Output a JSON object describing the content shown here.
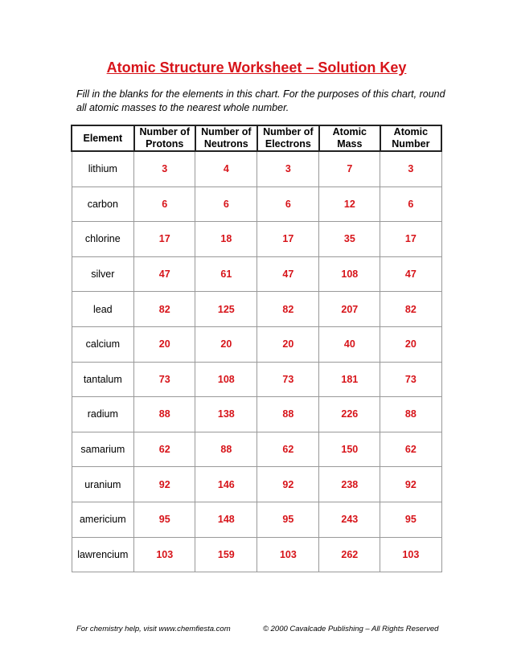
{
  "title": "Atomic Structure Worksheet – Solution Key",
  "intro": "Fill in the blanks for the elements in this chart.  For the purposes of this chart, round all atomic masses to the nearest whole number.",
  "colors": {
    "accent": "#d7141a"
  },
  "table": {
    "headers": [
      "Element",
      "Number of Protons",
      "Number of Neutrons",
      "Number of Electrons",
      "Atomic Mass",
      "Atomic Number"
    ],
    "rows": [
      [
        "lithium",
        "3",
        "4",
        "3",
        "7",
        "3"
      ],
      [
        "carbon",
        "6",
        "6",
        "6",
        "12",
        "6"
      ],
      [
        "chlorine",
        "17",
        "18",
        "17",
        "35",
        "17"
      ],
      [
        "silver",
        "47",
        "61",
        "47",
        "108",
        "47"
      ],
      [
        "lead",
        "82",
        "125",
        "82",
        "207",
        "82"
      ],
      [
        "calcium",
        "20",
        "20",
        "20",
        "40",
        "20"
      ],
      [
        "tantalum",
        "73",
        "108",
        "73",
        "181",
        "73"
      ],
      [
        "radium",
        "88",
        "138",
        "88",
        "226",
        "88"
      ],
      [
        "samarium",
        "62",
        "88",
        "62",
        "150",
        "62"
      ],
      [
        "uranium",
        "92",
        "146",
        "92",
        "238",
        "92"
      ],
      [
        "americium",
        "95",
        "148",
        "95",
        "243",
        "95"
      ],
      [
        "lawrencium",
        "103",
        "159",
        "103",
        "262",
        "103"
      ]
    ]
  },
  "footer": {
    "left": "For chemistry help, visit www.chemfiesta.com",
    "right": "© 2000 Cavalcade Publishing – All Rights Reserved"
  }
}
